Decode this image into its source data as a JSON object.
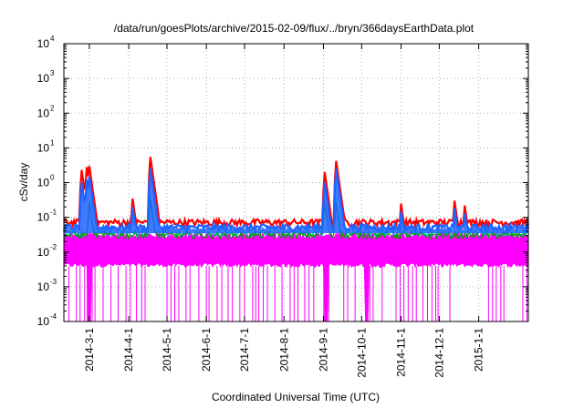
{
  "chart_data": {
    "type": "line",
    "title": "/data/run/goesPlots/archive/2015-02-09/flux/../bryn/366daysEarthData.plot",
    "xlabel": "Coordinated Universal Time (UTC)",
    "ylabel": "cSv/day",
    "yscale": "log",
    "ylim": [
      0.0001,
      10000
    ],
    "y_ticks": [
      {
        "base": "10",
        "exp": "-4",
        "value": 0.0001
      },
      {
        "base": "10",
        "exp": "-3",
        "value": 0.001
      },
      {
        "base": "10",
        "exp": "-2",
        "value": 0.01
      },
      {
        "base": "10",
        "exp": "-1",
        "value": 0.1
      },
      {
        "base": "10",
        "exp": "0",
        "value": 1
      },
      {
        "base": "10",
        "exp": "1",
        "value": 10
      },
      {
        "base": "10",
        "exp": "2",
        "value": 100
      },
      {
        "base": "10",
        "exp": "3",
        "value": 1000
      },
      {
        "base": "10",
        "exp": "4",
        "value": 10000
      }
    ],
    "xlim": [
      "2014-02-09",
      "2015-02-09"
    ],
    "x_ticks": [
      "2014-3-1",
      "2014-4-1",
      "2014-5-1",
      "2014-6-1",
      "2014-7-1",
      "2014-8-1",
      "2014-9-1",
      "2014-10-1",
      "2014-11-1",
      "2014-12-1",
      "2015-1-1"
    ],
    "grid": true,
    "legend": "none",
    "series": [
      {
        "color": "#ff0000",
        "baseline": 0.07,
        "points": [
          [
            "2014-02-23",
            2.3
          ],
          [
            "2014-02-27",
            2.8
          ],
          [
            "2014-03-01",
            3.0
          ],
          [
            "2014-04-04",
            0.35
          ],
          [
            "2014-04-18",
            5.5
          ],
          [
            "2014-09-02",
            2.0
          ],
          [
            "2014-09-11",
            4.2
          ],
          [
            "2014-11-01",
            0.25
          ],
          [
            "2014-12-13",
            0.3
          ],
          [
            "2014-12-21",
            0.22
          ]
        ]
      },
      {
        "color": "#1e64ff",
        "baseline": 0.05,
        "points": [
          [
            "2014-02-23",
            1.0
          ],
          [
            "2014-02-27",
            1.2
          ],
          [
            "2014-03-01",
            1.5
          ],
          [
            "2014-04-04",
            0.2
          ],
          [
            "2014-04-18",
            2.5
          ],
          [
            "2014-09-02",
            1.0
          ],
          [
            "2014-09-11",
            2.5
          ],
          [
            "2014-11-01",
            0.15
          ],
          [
            "2014-12-13",
            0.18
          ],
          [
            "2014-12-21",
            0.13
          ]
        ]
      },
      {
        "color": "#00c8c8",
        "baseline": 0.035,
        "points": [
          [
            "2014-03-01",
            0.3
          ],
          [
            "2014-04-18",
            0.4
          ],
          [
            "2014-09-02",
            0.3
          ],
          [
            "2014-09-11",
            0.3
          ]
        ]
      },
      {
        "color": "#00a000",
        "baseline": 0.03,
        "points": [
          [
            "2014-03-01",
            0.25
          ],
          [
            "2014-04-18",
            0.3
          ],
          [
            "2014-09-02",
            0.25
          ],
          [
            "2014-09-11",
            0.25
          ]
        ]
      },
      {
        "color": "#ff00ff",
        "baseline": 0.004,
        "upper": 0.03,
        "dropouts_to": 0.0001,
        "dips": [
          [
            "2014-03-01",
            0.01
          ],
          [
            "2014-09-03",
            0.01
          ],
          [
            "2014-10-05",
            0.005
          ]
        ]
      }
    ]
  }
}
